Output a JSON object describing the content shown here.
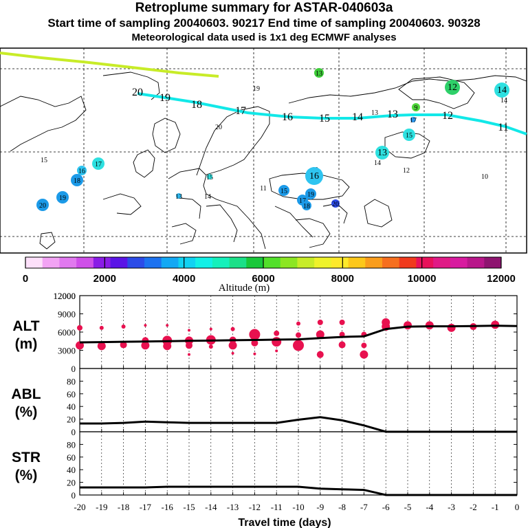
{
  "header": {
    "title": "Retroplume summary for ASTAR-040603a",
    "sampling": "Start time of sampling 20040603. 90217     End time of sampling 20040603. 90328",
    "met": "Meteorological data used is 1x1 deg ECMWF analyses"
  },
  "colorbar": {
    "label": "Altitude (m)",
    "ticks": [
      "0",
      "2000",
      "4000",
      "6000",
      "8000",
      "10000",
      "12000"
    ],
    "colors": [
      "#fde0fa",
      "#f2a3f4",
      "#e179ef",
      "#cf4fe9",
      "#8a1ce6",
      "#5a14e6",
      "#2b4be8",
      "#1c72f0",
      "#13a8f4",
      "#11d2f2",
      "#12f0e6",
      "#15f0bb",
      "#1be088",
      "#18c83a",
      "#52e02a",
      "#8ce623",
      "#c8ec28",
      "#eef22a",
      "#fde92a",
      "#fdc81a",
      "#fa9d1c",
      "#f66f1f",
      "#f03a1d",
      "#e8115a",
      "#e01a86",
      "#d81a9f",
      "#b8168a",
      "#8e1470"
    ]
  },
  "map": {
    "lat_labels": [],
    "track_labels": [
      "20",
      "19",
      "18",
      "17",
      "16",
      "15",
      "14",
      "13",
      "12",
      "11"
    ],
    "clusters": [
      {
        "label": "13",
        "color": "#3ecc3a"
      },
      {
        "label": "19",
        "color": "#9ee38e"
      },
      {
        "label": "12",
        "color": "#2ed069"
      },
      {
        "label": "14",
        "color": "#2ee0e0"
      },
      {
        "label": "14",
        "color": "#2ee0e0"
      },
      {
        "label": "9",
        "color": "#4fd63a"
      },
      {
        "label": "13",
        "color": "#2fb9f0"
      },
      {
        "label": "17",
        "color": "#2f9af0"
      },
      {
        "label": "15",
        "color": "#2ee0e0"
      },
      {
        "label": "20",
        "color": "#12e8b9"
      },
      {
        "label": "13",
        "color": "#2ee0e0"
      },
      {
        "label": "14",
        "color": "#2ee0e0"
      },
      {
        "label": "12",
        "color": "#2fb9f0"
      },
      {
        "label": "10",
        "color": "#2ee0e0"
      },
      {
        "label": "15",
        "color": "#14e08a"
      },
      {
        "label": "17",
        "color": "#2ee0e0"
      },
      {
        "label": "16",
        "color": "#2ec4f0"
      },
      {
        "label": "18",
        "color": "#1c9ae8"
      },
      {
        "label": "19",
        "color": "#1c9ae8"
      },
      {
        "label": "20",
        "color": "#1c9ae8"
      },
      {
        "label": "15",
        "color": "#2ee0e0"
      },
      {
        "label": "13",
        "color": "#2fb9f0"
      },
      {
        "label": "14",
        "color": "#2ee0e0"
      },
      {
        "label": "11",
        "color": "#12e8b9"
      },
      {
        "label": "15",
        "color": "#1c9ae8"
      },
      {
        "label": "10",
        "color": "#2ee0e0"
      },
      {
        "label": "16",
        "color": "#2ec4f0"
      },
      {
        "label": "19",
        "color": "#1c9ae8"
      },
      {
        "label": "17",
        "color": "#1c9ae8"
      },
      {
        "label": "18",
        "color": "#1c9ae8"
      },
      {
        "label": "20",
        "color": "#2b4be8"
      }
    ]
  },
  "chart_data": [
    {
      "type": "line",
      "title": "ALT (m)",
      "ylabel_top": "ALT",
      "ylabel_bottom": "(m)",
      "ylim": [
        0,
        12000
      ],
      "yticks": [
        0,
        3000,
        6000,
        9000,
        12000
      ],
      "x": [
        -20,
        -19,
        -18,
        -17,
        -16,
        -15,
        -14,
        -13,
        -12,
        -11,
        -10,
        -9,
        -8,
        -7,
        -6,
        -5,
        -4,
        -3,
        -2,
        -1,
        0
      ],
      "y": [
        4300,
        4350,
        4400,
        4450,
        4500,
        4550,
        4600,
        4650,
        4700,
        4750,
        4800,
        5000,
        5200,
        5300,
        6500,
        6900,
        6950,
        6950,
        7000,
        7050,
        7000
      ],
      "bubbles": [
        {
          "x": -20,
          "y": 3800,
          "s": 6
        },
        {
          "x": -20,
          "y": 6700,
          "s": 4
        },
        {
          "x": -19,
          "y": 3700,
          "s": 6
        },
        {
          "x": -19,
          "y": 6700,
          "s": 3
        },
        {
          "x": -18,
          "y": 3900,
          "s": 5
        },
        {
          "x": -18,
          "y": 6900,
          "s": 3
        },
        {
          "x": -17,
          "y": 3800,
          "s": 6
        },
        {
          "x": -17,
          "y": 4600,
          "s": 5
        },
        {
          "x": -17,
          "y": 7100,
          "s": 2
        },
        {
          "x": -16,
          "y": 3700,
          "s": 6
        },
        {
          "x": -16,
          "y": 4600,
          "s": 7
        },
        {
          "x": -16,
          "y": 7100,
          "s": 2
        },
        {
          "x": -15,
          "y": 3800,
          "s": 5
        },
        {
          "x": -15,
          "y": 4600,
          "s": 6
        },
        {
          "x": -15,
          "y": 2300,
          "s": 2
        },
        {
          "x": -15,
          "y": 6300,
          "s": 2
        },
        {
          "x": -14,
          "y": 4700,
          "s": 7
        },
        {
          "x": -14,
          "y": 3600,
          "s": 3
        },
        {
          "x": -14,
          "y": 6500,
          "s": 2
        },
        {
          "x": -13,
          "y": 3800,
          "s": 6
        },
        {
          "x": -13,
          "y": 4700,
          "s": 5
        },
        {
          "x": -13,
          "y": 6500,
          "s": 3
        },
        {
          "x": -13,
          "y": 2500,
          "s": 2
        },
        {
          "x": -12,
          "y": 5600,
          "s": 8
        },
        {
          "x": -12,
          "y": 4200,
          "s": 5
        },
        {
          "x": -12,
          "y": 2400,
          "s": 2
        },
        {
          "x": -11,
          "y": 4400,
          "s": 7
        },
        {
          "x": -11,
          "y": 5800,
          "s": 4
        },
        {
          "x": -11,
          "y": 2900,
          "s": 2
        },
        {
          "x": -10,
          "y": 3800,
          "s": 8
        },
        {
          "x": -10,
          "y": 5500,
          "s": 4
        },
        {
          "x": -10,
          "y": 7400,
          "s": 3
        },
        {
          "x": -9,
          "y": 5600,
          "s": 6
        },
        {
          "x": -9,
          "y": 7600,
          "s": 4
        },
        {
          "x": -9,
          "y": 2300,
          "s": 5
        },
        {
          "x": -8,
          "y": 3900,
          "s": 5
        },
        {
          "x": -8,
          "y": 5600,
          "s": 4
        },
        {
          "x": -8,
          "y": 7600,
          "s": 4
        },
        {
          "x": -7,
          "y": 2300,
          "s": 6
        },
        {
          "x": -7,
          "y": 3800,
          "s": 4
        },
        {
          "x": -7,
          "y": 5600,
          "s": 4
        },
        {
          "x": -6,
          "y": 6900,
          "s": 6
        },
        {
          "x": -6,
          "y": 7600,
          "s": 6
        },
        {
          "x": -5,
          "y": 7100,
          "s": 6
        },
        {
          "x": -4,
          "y": 7100,
          "s": 6
        },
        {
          "x": -3,
          "y": 6700,
          "s": 6
        },
        {
          "x": -2,
          "y": 6900,
          "s": 5
        },
        {
          "x": -1,
          "y": 7200,
          "s": 6
        }
      ]
    },
    {
      "type": "line",
      "title": "ABL (%)",
      "ylabel_top": "ABL",
      "ylabel_bottom": "(%)",
      "ylim": [
        0,
        100
      ],
      "yticks": [
        0,
        20,
        40,
        60,
        80
      ],
      "x": [
        -20,
        -19,
        -18,
        -17,
        -16,
        -15,
        -14,
        -13,
        -12,
        -11,
        -10,
        -9,
        -8,
        -7,
        -6,
        -5,
        -4,
        -3,
        -2,
        -1,
        0
      ],
      "y": [
        13,
        13,
        14,
        16,
        15,
        14,
        14,
        14,
        14,
        14,
        19,
        23,
        18,
        10,
        0,
        0,
        0,
        0,
        0,
        0,
        0
      ]
    },
    {
      "type": "line",
      "title": "STR (%)",
      "ylabel_top": "STR",
      "ylabel_bottom": "(%)",
      "ylim": [
        0,
        100
      ],
      "yticks": [
        0,
        20,
        40,
        60,
        80
      ],
      "x": [
        -20,
        -19,
        -18,
        -17,
        -16,
        -15,
        -14,
        -13,
        -12,
        -11,
        -10,
        -9,
        -8,
        -7,
        -6,
        -5,
        -4,
        -3,
        -2,
        -1,
        0
      ],
      "y": [
        12,
        12,
        12,
        12,
        13,
        13,
        13,
        13,
        13,
        13,
        13,
        10,
        9,
        8,
        0,
        0,
        0,
        0,
        0,
        0,
        0
      ],
      "xlabel": "Travel time (days)",
      "xticks": [
        -20,
        -19,
        -18,
        -17,
        -16,
        -15,
        -14,
        -13,
        -12,
        -11,
        -10,
        -9,
        -8,
        -7,
        -6,
        -5,
        -4,
        -3,
        -2,
        -1,
        0
      ]
    }
  ]
}
